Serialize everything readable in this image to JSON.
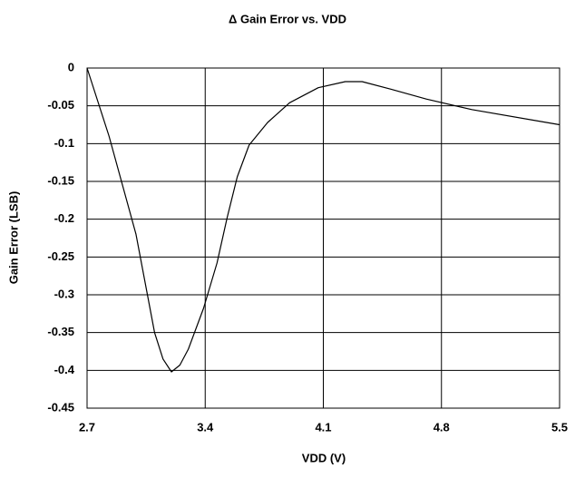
{
  "chart_data": {
    "type": "line",
    "title": "Δ Gain Error vs. VDD",
    "xlabel": "VDD (V)",
    "ylabel": "Gain Error (LSB)",
    "x": [
      2.7,
      2.83,
      2.99,
      3.1,
      3.15,
      3.2,
      3.25,
      3.3,
      3.39,
      3.47,
      3.53,
      3.59,
      3.66,
      3.77,
      3.9,
      4.07,
      4.23,
      4.33,
      4.5,
      4.71,
      4.98,
      5.5
    ],
    "series": [
      {
        "name": "Gain Error",
        "color": "#000000",
        "values": [
          0,
          -0.09,
          -0.22,
          -0.35,
          -0.385,
          -0.402,
          -0.393,
          -0.372,
          -0.318,
          -0.258,
          -0.198,
          -0.144,
          -0.102,
          -0.072,
          -0.046,
          -0.026,
          -0.018,
          -0.018,
          -0.028,
          -0.041,
          -0.055,
          -0.075
        ]
      }
    ],
    "xlim": [
      2.7,
      5.5
    ],
    "xticks": [
      2.7,
      3.4,
      4.1,
      4.8,
      5.5
    ],
    "ylim": [
      -0.45,
      0
    ],
    "yticks": [
      0,
      -0.05,
      -0.1,
      -0.15,
      -0.2,
      -0.25,
      -0.3,
      -0.35,
      -0.4,
      -0.45
    ],
    "grid": true
  }
}
